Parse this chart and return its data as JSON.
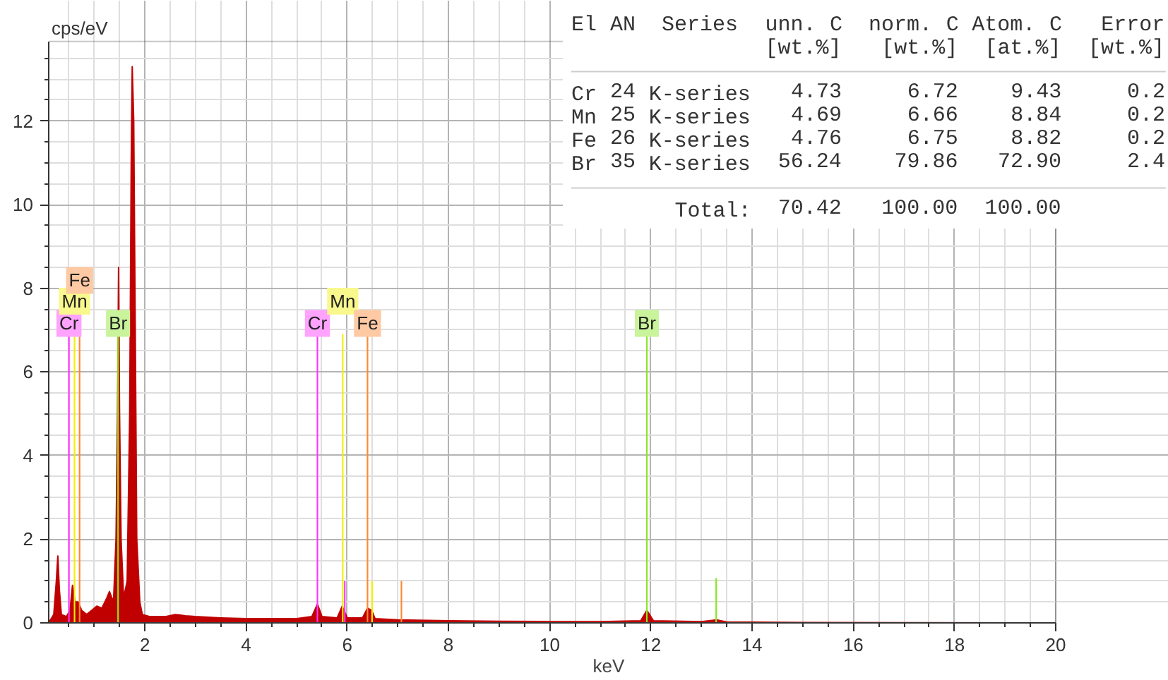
{
  "chart_data": {
    "type": "area",
    "xlabel": "keV",
    "ylabel": "cps/eV",
    "xlim": [
      0.1,
      20
    ],
    "ylim": [
      0,
      13.9
    ],
    "xticks": [
      2,
      4,
      6,
      8,
      10,
      12,
      14,
      16,
      18,
      20
    ],
    "yticks": [
      0,
      2,
      4,
      6,
      8,
      10,
      12
    ],
    "grid": true,
    "series": [
      {
        "color": "#c00000",
        "x": [
          0.1,
          0.2,
          0.25,
          0.28,
          0.31,
          0.35,
          0.45,
          0.52,
          0.57,
          0.62,
          0.68,
          0.75,
          0.85,
          0.95,
          1.05,
          1.15,
          1.25,
          1.3,
          1.38,
          1.43,
          1.46,
          1.48,
          1.5,
          1.53,
          1.58,
          1.65,
          1.7,
          1.73,
          1.75,
          1.78,
          1.81,
          1.84,
          1.9,
          1.95,
          2.1,
          2.4,
          2.6,
          2.8,
          3.0,
          3.5,
          4.0,
          4.5,
          5.0,
          5.3,
          5.41,
          5.5,
          5.8,
          5.9,
          6.0,
          6.3,
          6.4,
          6.48,
          6.55,
          7.0,
          8.0,
          9.0,
          10.0,
          11.0,
          11.8,
          11.92,
          12.05,
          13.0,
          13.3,
          13.5,
          15.0,
          20.0
        ],
        "values": [
          0.0,
          0.2,
          1.0,
          1.6,
          0.8,
          0.2,
          0.15,
          0.3,
          0.9,
          0.5,
          0.5,
          0.3,
          0.2,
          0.3,
          0.4,
          0.35,
          0.6,
          0.75,
          0.5,
          2.0,
          5.0,
          8.5,
          5.0,
          2.0,
          0.6,
          1.0,
          5.0,
          11.0,
          13.3,
          12.0,
          7.0,
          2.0,
          0.5,
          0.2,
          0.15,
          0.15,
          0.2,
          0.17,
          0.15,
          0.12,
          0.1,
          0.1,
          0.1,
          0.15,
          0.45,
          0.15,
          0.12,
          0.4,
          0.12,
          0.12,
          0.35,
          0.3,
          0.1,
          0.07,
          0.05,
          0.04,
          0.03,
          0.03,
          0.05,
          0.3,
          0.05,
          0.03,
          0.07,
          0.02,
          0.01,
          0.0
        ]
      },
      {
        "type": "bar",
        "color": "#ff33ff",
        "x": [
          0.5,
          5.41,
          5.95
        ],
        "values": [
          6.9,
          6.9,
          1.0
        ]
      },
      {
        "type": "bar",
        "color": "#f0f000",
        "x": [
          0.61,
          5.91,
          6.49
        ],
        "values": [
          6.9,
          6.9,
          1.0
        ]
      },
      {
        "type": "bar",
        "color": "#ff8833",
        "x": [
          0.71,
          6.4,
          7.07
        ],
        "values": [
          6.9,
          6.9,
          1.0
        ]
      },
      {
        "type": "bar",
        "color": "#88e822",
        "x": [
          1.47,
          11.92,
          13.29
        ],
        "values": [
          6.9,
          6.9,
          1.07
        ]
      }
    ],
    "annotations": [
      {
        "text": "Cr",
        "x": 0.5,
        "y": 7.16
      },
      {
        "text": "Mn",
        "x": 0.61,
        "y": 7.69
      },
      {
        "text": "Fe",
        "x": 0.71,
        "y": 8.19
      },
      {
        "text": "Br",
        "x": 1.47,
        "y": 7.16
      },
      {
        "text": "Cr",
        "x": 5.41,
        "y": 7.16
      },
      {
        "text": "Mn",
        "x": 5.91,
        "y": 7.69
      },
      {
        "text": "Fe",
        "x": 6.4,
        "y": 7.16
      },
      {
        "text": "Br",
        "x": 11.92,
        "y": 7.16
      },
      "El AN  Series  unn. C  norm. C Atom. C   Error",
      "               [wt.%]   [wt.%]  [at.%]  [wt.%]",
      "Cr 24 K-series   4.73     6.72    9.43     0.2",
      "Mn 25 K-series   4.69     6.66    8.84     0.2",
      "Fe 26 K-series   4.76     6.75    8.82     0.2",
      "Br 35 K-series  56.24    79.86   72.90     2.4",
      "        Total:  70.42   100.00  100.00"
    ]
  }
}
